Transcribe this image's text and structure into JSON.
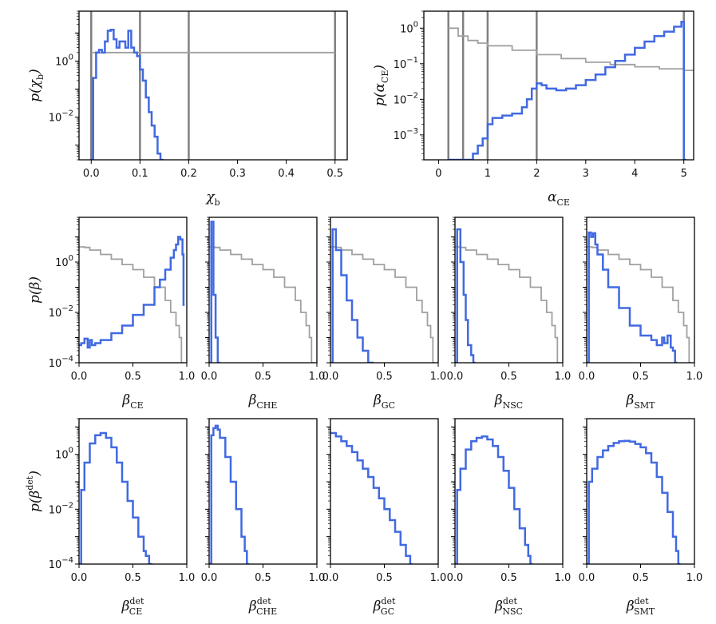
{
  "colors": {
    "posterior": "#4169e1",
    "prior": "#a0a0a0",
    "vline": "#7f7f7f",
    "frame": "#000000"
  },
  "chart_data": [
    {
      "type": "line",
      "id": "chi_b",
      "scale": "log-y",
      "xlim": [
        -0.025,
        0.525
      ],
      "ylim": [
        0.0003,
        60
      ],
      "xticks": [
        0.0,
        0.1,
        0.2,
        0.3,
        0.4,
        0.5
      ],
      "xtick_labels": [
        "0.0",
        "0.1",
        "0.2",
        "0.3",
        "0.4",
        "0.5"
      ],
      "yticks": [
        1,
        0.01
      ],
      "ytick_labels": [
        "10^0",
        "10^-2"
      ],
      "xlabel": {
        "sym": "χ",
        "sub": "b"
      },
      "ylabel": {
        "pre": "p(",
        "sym": "χ",
        "sub": "b",
        "post": ")"
      },
      "vlines": [
        0.0,
        0.1,
        0.2,
        0.5
      ],
      "prior": {
        "x": [
          0.0,
          0.5
        ],
        "y": [
          2,
          2
        ]
      },
      "posterior": {
        "x": [
          -0.002,
          0.004,
          0.01,
          0.016,
          0.022,
          0.028,
          0.034,
          0.04,
          0.046,
          0.052,
          0.058,
          0.064,
          0.07,
          0.076,
          0.082,
          0.088,
          0.094,
          0.1,
          0.106,
          0.112,
          0.118,
          0.124,
          0.13,
          0.136,
          0.142
        ],
        "y": [
          0.0003,
          0.25,
          2,
          2.5,
          2,
          5,
          12,
          13,
          6,
          3,
          5,
          5,
          3,
          12,
          3,
          2,
          1.5,
          0.5,
          0.2,
          0.05,
          0.015,
          0.005,
          0.002,
          0.0005,
          0.0003
        ]
      }
    },
    {
      "type": "line",
      "id": "alpha_ce",
      "scale": "log-y",
      "xlim": [
        -0.3,
        5.2
      ],
      "ylim": [
        0.0002,
        3
      ],
      "xticks": [
        0,
        1,
        2,
        3,
        4,
        5
      ],
      "xtick_labels": [
        "0",
        "1",
        "2",
        "3",
        "4",
        "5"
      ],
      "yticks": [
        1,
        0.1,
        0.01,
        0.001
      ],
      "ytick_labels": [
        "10^0",
        "10^-1",
        "10^-2",
        "10^-3"
      ],
      "xlabel": {
        "sym": "α",
        "sub": "CE"
      },
      "ylabel": {
        "pre": "p(",
        "sym": "α",
        "sub": "CE",
        "post": ")"
      },
      "vlines": [
        0.2,
        0.5,
        1.0,
        2.0,
        5.0
      ],
      "prior": {
        "x": [
          0.2,
          0.4,
          0.6,
          0.8,
          1.0,
          1.5,
          2.0,
          2.5,
          3.0,
          3.5,
          4.0,
          4.5,
          5.0
        ],
        "y": [
          1.0,
          0.6,
          0.45,
          0.38,
          0.32,
          0.24,
          0.18,
          0.14,
          0.11,
          0.095,
          0.082,
          0.072,
          0.065
        ]
      },
      "posterior": {
        "x": [
          0.2,
          0.5,
          0.7,
          0.8,
          0.9,
          1.0,
          1.1,
          1.3,
          1.5,
          1.7,
          1.8,
          1.9,
          2.0,
          2.1,
          2.2,
          2.4,
          2.6,
          2.8,
          3.0,
          3.2,
          3.4,
          3.6,
          3.8,
          4.0,
          4.2,
          4.4,
          4.6,
          4.8,
          4.95,
          5.0
        ],
        "y": [
          0.0002,
          0.0002,
          0.0003,
          0.0005,
          0.0008,
          0.002,
          0.003,
          0.0035,
          0.004,
          0.006,
          0.01,
          0.02,
          0.028,
          0.025,
          0.02,
          0.018,
          0.02,
          0.025,
          0.035,
          0.05,
          0.08,
          0.12,
          0.18,
          0.28,
          0.42,
          0.6,
          0.8,
          1.1,
          1.5,
          0.0002
        ]
      }
    },
    {
      "type": "line",
      "id": "beta_ce",
      "scale": "log-y",
      "xlim": [
        0,
        1
      ],
      "ylim": [
        0.0001,
        60
      ],
      "xticks": [
        0,
        0.5,
        1.0
      ],
      "xtick_labels": [
        "0.0",
        "0.5",
        "1.0"
      ],
      "yticks": [
        1,
        0.01,
        0.0001
      ],
      "ytick_labels": [
        "10^0",
        "10^-2",
        "10^-4"
      ],
      "xlabel": {
        "sym": "β",
        "sub": "CE"
      },
      "ylabel": {
        "pre": "p(",
        "sym": "β",
        "post": ")"
      },
      "prior": {
        "x": [
          0.0,
          0.05,
          0.1,
          0.2,
          0.3,
          0.4,
          0.5,
          0.6,
          0.7,
          0.8,
          0.85,
          0.9,
          0.93,
          0.95
        ],
        "y": [
          4,
          3.8,
          3,
          2,
          1.3,
          0.8,
          0.5,
          0.25,
          0.1,
          0.03,
          0.01,
          0.003,
          0.001,
          0.0001
        ]
      },
      "posterior": {
        "x": [
          0.0,
          0.02,
          0.05,
          0.08,
          0.1,
          0.12,
          0.15,
          0.2,
          0.3,
          0.4,
          0.5,
          0.6,
          0.7,
          0.75,
          0.8,
          0.85,
          0.88,
          0.9,
          0.92,
          0.94,
          0.96,
          0.97
        ],
        "y": [
          0.0005,
          0.0006,
          0.0009,
          0.0004,
          0.0008,
          0.0005,
          0.0006,
          0.0008,
          0.0015,
          0.003,
          0.008,
          0.02,
          0.1,
          0.2,
          0.5,
          1.5,
          3,
          5,
          10,
          8,
          2,
          0.02
        ]
      }
    },
    {
      "type": "line",
      "id": "beta_che",
      "scale": "log-y",
      "xlim": [
        0,
        1
      ],
      "ylim": [
        0.0001,
        60
      ],
      "xticks": [
        0,
        0.5,
        1.0
      ],
      "xtick_labels": [
        "0.0",
        "0.5",
        "1.0"
      ],
      "xlabel": {
        "sym": "β",
        "sub": "CHE"
      },
      "prior": {
        "x": [
          0.0,
          0.05,
          0.1,
          0.2,
          0.3,
          0.4,
          0.5,
          0.6,
          0.7,
          0.8,
          0.85,
          0.9,
          0.93,
          0.95
        ],
        "y": [
          4,
          3.8,
          3,
          2,
          1.3,
          0.8,
          0.5,
          0.25,
          0.1,
          0.03,
          0.01,
          0.003,
          0.001,
          0.0001
        ]
      },
      "posterior": {
        "x": [
          0.0,
          0.02,
          0.04,
          0.06,
          0.08
        ],
        "y": [
          0.0001,
          40,
          0.05,
          0.001,
          0.0001
        ]
      }
    },
    {
      "type": "line",
      "id": "beta_gc",
      "scale": "log-y",
      "xlim": [
        0,
        1
      ],
      "ylim": [
        0.0001,
        60
      ],
      "xticks": [
        0,
        0.5,
        1.0
      ],
      "xtick_labels": [
        "0.0",
        "0.5",
        "1.0"
      ],
      "xlabel": {
        "sym": "β",
        "sub": "GC"
      },
      "prior": {
        "x": [
          0.0,
          0.05,
          0.1,
          0.2,
          0.3,
          0.4,
          0.5,
          0.6,
          0.7,
          0.8,
          0.85,
          0.9,
          0.93,
          0.95
        ],
        "y": [
          4,
          3.8,
          3,
          2,
          1.3,
          0.8,
          0.5,
          0.25,
          0.1,
          0.03,
          0.01,
          0.003,
          0.001,
          0.0001
        ]
      },
      "posterior": {
        "x": [
          0.0,
          0.02,
          0.05,
          0.1,
          0.15,
          0.2,
          0.25,
          0.3,
          0.35
        ],
        "y": [
          0.0001,
          20,
          3,
          0.3,
          0.03,
          0.005,
          0.001,
          0.0003,
          0.0001
        ]
      }
    },
    {
      "type": "line",
      "id": "beta_nsc",
      "scale": "log-y",
      "xlim": [
        0,
        1
      ],
      "ylim": [
        0.0001,
        60
      ],
      "xticks": [
        0,
        0.5,
        1.0
      ],
      "xtick_labels": [
        "0.0",
        "0.5",
        "1.0"
      ],
      "xlabel": {
        "sym": "β",
        "sub": "NSC"
      },
      "prior": {
        "x": [
          0.0,
          0.05,
          0.1,
          0.2,
          0.3,
          0.4,
          0.5,
          0.6,
          0.7,
          0.8,
          0.85,
          0.9,
          0.93,
          0.95
        ],
        "y": [
          4,
          3.8,
          3,
          2,
          1.3,
          0.8,
          0.5,
          0.25,
          0.1,
          0.03,
          0.01,
          0.003,
          0.001,
          0.0001
        ]
      },
      "posterior": {
        "x": [
          0.0,
          0.02,
          0.05,
          0.08,
          0.1,
          0.12,
          0.15,
          0.17
        ],
        "y": [
          0.0001,
          20,
          1,
          0.05,
          0.005,
          0.0005,
          0.0002,
          0.0001
        ]
      }
    },
    {
      "type": "line",
      "id": "beta_smt",
      "scale": "log-y",
      "xlim": [
        0,
        1
      ],
      "ylim": [
        0.0001,
        60
      ],
      "xticks": [
        0,
        0.5,
        1.0
      ],
      "xtick_labels": [
        "0.0",
        "0.5",
        "1.0"
      ],
      "xlabel": {
        "sym": "β",
        "sub": "SMT"
      },
      "prior": {
        "x": [
          0.0,
          0.05,
          0.1,
          0.2,
          0.3,
          0.4,
          0.5,
          0.6,
          0.7,
          0.8,
          0.85,
          0.9,
          0.93,
          0.95
        ],
        "y": [
          4,
          3.8,
          3,
          2,
          1.3,
          0.8,
          0.5,
          0.25,
          0.1,
          0.03,
          0.01,
          0.003,
          0.001,
          0.0001
        ]
      },
      "posterior": {
        "x": [
          0.0,
          0.02,
          0.04,
          0.06,
          0.08,
          0.1,
          0.15,
          0.2,
          0.3,
          0.4,
          0.5,
          0.6,
          0.65,
          0.7,
          0.72,
          0.75,
          0.78,
          0.8,
          0.82
        ],
        "y": [
          0.0001,
          15,
          10,
          14,
          5,
          2,
          0.5,
          0.1,
          0.015,
          0.003,
          0.0012,
          0.0008,
          0.0005,
          0.001,
          0.0006,
          0.0012,
          0.0004,
          0.0003,
          0.0001
        ]
      }
    },
    {
      "type": "line",
      "id": "beta_det_ce",
      "scale": "log-y",
      "xlim": [
        0,
        1
      ],
      "ylim": [
        0.0001,
        20
      ],
      "xticks": [
        0,
        0.5,
        1.0
      ],
      "xtick_labels": [
        "0.0",
        "0.5",
        "1.0"
      ],
      "yticks": [
        1,
        0.01,
        0.0001
      ],
      "ytick_labels": [
        "10^0",
        "10^-2",
        "10^-4"
      ],
      "xlabel": {
        "sym": "β",
        "sub": "CE",
        "sup": "det"
      },
      "ylabel": {
        "pre": "p(",
        "sym": "β",
        "sup": "det",
        "post": ")"
      },
      "posterior": {
        "x": [
          0.0,
          0.02,
          0.05,
          0.1,
          0.15,
          0.2,
          0.25,
          0.3,
          0.35,
          0.4,
          0.45,
          0.5,
          0.55,
          0.6,
          0.62,
          0.65
        ],
        "y": [
          0.0001,
          0.05,
          0.5,
          2.5,
          5,
          6,
          4,
          1.8,
          0.5,
          0.1,
          0.02,
          0.005,
          0.001,
          0.0003,
          0.0002,
          0.0001
        ]
      }
    },
    {
      "type": "line",
      "id": "beta_det_che",
      "scale": "log-y",
      "xlim": [
        0,
        1
      ],
      "ylim": [
        0.0001,
        20
      ],
      "xticks": [
        0,
        0.5,
        1.0
      ],
      "xtick_labels": [
        "0.0",
        "0.5",
        "1.0"
      ],
      "xlabel": {
        "sym": "β",
        "sub": "CHE",
        "sup": "det"
      },
      "posterior": {
        "x": [
          0.0,
          0.02,
          0.04,
          0.06,
          0.08,
          0.1,
          0.15,
          0.2,
          0.25,
          0.3,
          0.33,
          0.35
        ],
        "y": [
          0.0001,
          5,
          9,
          11,
          8,
          4,
          0.8,
          0.1,
          0.01,
          0.001,
          0.0003,
          0.0001
        ]
      }
    },
    {
      "type": "line",
      "id": "beta_det_gc",
      "scale": "log-y",
      "xlim": [
        0,
        1
      ],
      "ylim": [
        0.0001,
        20
      ],
      "xticks": [
        0,
        0.5,
        1.0
      ],
      "xtick_labels": [
        "0.0",
        "0.5",
        "1.0"
      ],
      "xlabel": {
        "sym": "β",
        "sub": "GC",
        "sup": "det"
      },
      "posterior": {
        "x": [
          0.0,
          0.05,
          0.1,
          0.15,
          0.2,
          0.25,
          0.3,
          0.35,
          0.4,
          0.45,
          0.5,
          0.55,
          0.6,
          0.65,
          0.7,
          0.72,
          0.74
        ],
        "y": [
          6,
          4.5,
          3,
          2,
          1.2,
          0.6,
          0.3,
          0.15,
          0.06,
          0.025,
          0.01,
          0.004,
          0.0015,
          0.0005,
          0.0002,
          0.0002,
          0.0001
        ]
      }
    },
    {
      "type": "line",
      "id": "beta_det_nsc",
      "scale": "log-y",
      "xlim": [
        0,
        1
      ],
      "ylim": [
        0.0001,
        20
      ],
      "xticks": [
        0,
        0.5,
        1.0
      ],
      "xtick_labels": [
        "0.0",
        "0.5",
        "1.0"
      ],
      "xlabel": {
        "sym": "β",
        "sub": "NSC",
        "sup": "det"
      },
      "posterior": {
        "x": [
          0.0,
          0.02,
          0.05,
          0.1,
          0.15,
          0.2,
          0.25,
          0.3,
          0.35,
          0.4,
          0.45,
          0.5,
          0.55,
          0.6,
          0.65,
          0.68,
          0.7
        ],
        "y": [
          0.0001,
          0.05,
          0.3,
          1.5,
          3,
          4,
          4.5,
          3.5,
          2,
          0.8,
          0.25,
          0.06,
          0.01,
          0.002,
          0.0005,
          0.0002,
          0.0001
        ]
      }
    },
    {
      "type": "line",
      "id": "beta_det_smt",
      "scale": "log-y",
      "xlim": [
        0,
        1
      ],
      "ylim": [
        0.0001,
        20
      ],
      "xticks": [
        0,
        0.5,
        1.0
      ],
      "xtick_labels": [
        "0.0",
        "0.5",
        "1.0"
      ],
      "xlabel": {
        "sym": "β",
        "sub": "SMT",
        "sup": "det"
      },
      "posterior": {
        "x": [
          0.0,
          0.02,
          0.05,
          0.1,
          0.15,
          0.2,
          0.25,
          0.3,
          0.35,
          0.4,
          0.45,
          0.5,
          0.55,
          0.6,
          0.65,
          0.7,
          0.75,
          0.8,
          0.83,
          0.85
        ],
        "y": [
          0.0001,
          0.1,
          0.3,
          0.8,
          1.4,
          2,
          2.6,
          3,
          3.1,
          2.9,
          2.4,
          1.8,
          1.1,
          0.5,
          0.15,
          0.04,
          0.008,
          0.001,
          0.0003,
          0.0001
        ]
      }
    }
  ]
}
